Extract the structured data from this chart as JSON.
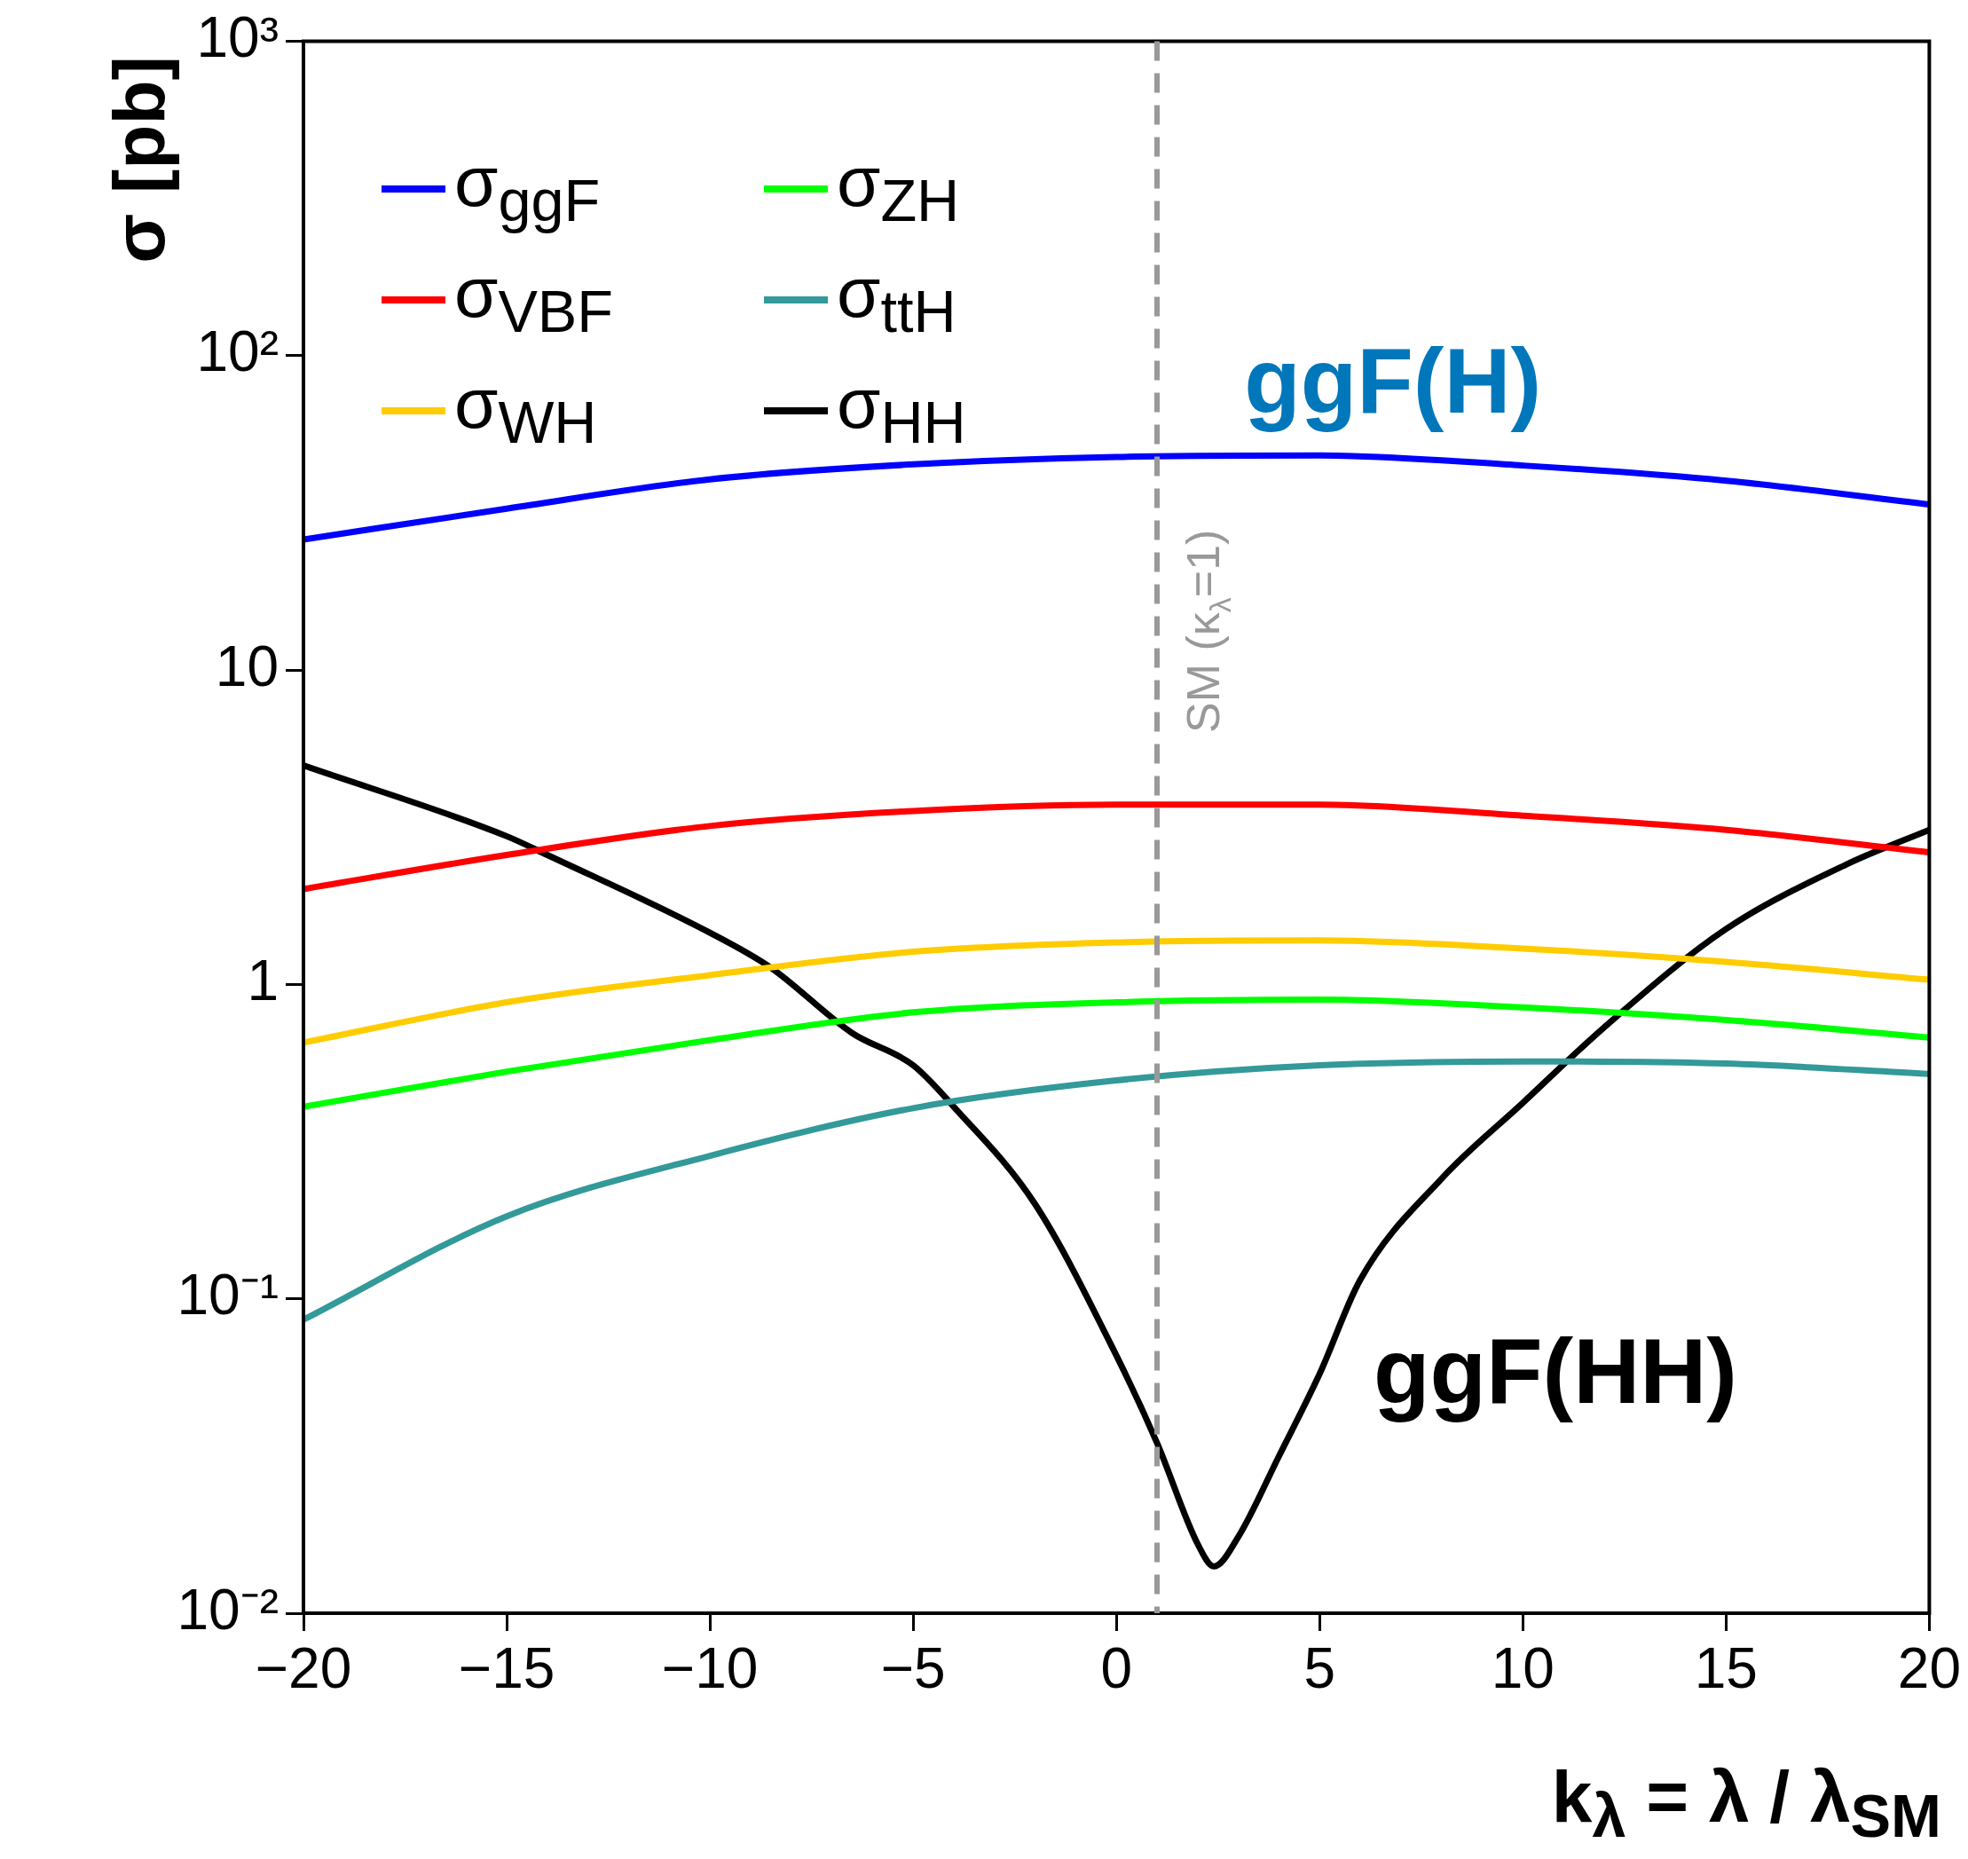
{
  "chart_data": {
    "type": "line",
    "xlabel": "k$_{λ}$ = λ / λ$_{SM}$",
    "ylabel": "σ [pb]",
    "log": "y",
    "legend": "top left",
    "x": [
      -20,
      -15,
      -10,
      -5,
      0,
      5,
      10,
      15,
      20
    ],
    "xlim": [
      -20,
      20
    ],
    "xticks": [
      {
        "value": -20,
        "label": "−20"
      },
      {
        "value": -15,
        "label": "−15"
      },
      {
        "value": -10,
        "label": "−10"
      },
      {
        "value": -5,
        "label": "−5"
      },
      0,
      5,
      10,
      15,
      20
    ],
    "ylim": [
      0.01,
      1000
    ],
    "yticks": [
      {
        "value": 0.01,
        "label": "10⁻²"
      },
      {
        "value": 0.1,
        "label": "10⁻¹"
      },
      1,
      10,
      {
        "value": 100,
        "label": "10²"
      },
      {
        "value": 1000,
        "label": "10³"
      }
    ],
    "series": [
      {
        "name": "σ$_{ggF}$",
        "color": "#0000ff",
        "values": [
          26,
          32.6,
          40.4,
          45.1,
          47.6,
          48.1,
          44.7,
          40,
          33.6
        ]
      },
      {
        "name": "σ$_{VBF}$",
        "color": "#ff0000",
        "values": [
          2.01,
          2.58,
          3.19,
          3.56,
          3.73,
          3.73,
          3.44,
          3.1,
          2.63
        ]
      },
      {
        "name": "σ$_{WH}$",
        "color": "#ffcc00",
        "values": [
          0.653,
          0.877,
          1.07,
          1.27,
          1.36,
          1.38,
          1.3,
          1.18,
          1.035
        ]
      },
      {
        "name": "σ$_{ZH}$",
        "color": "#00ff00",
        "values": [
          0.408,
          0.528,
          0.665,
          0.815,
          0.877,
          0.894,
          0.845,
          0.77,
          0.678
        ]
      },
      {
        "name": "σ$_{ttH}$",
        "color": "#339999",
        "values": [
          0.0858,
          0.183,
          0.285,
          0.404,
          0.495,
          0.553,
          0.569,
          0.56,
          0.519
        ]
      },
      {
        "name": "σ$_{HH}$",
        "color": "#000000",
        "x": [
          -20,
          -15,
          -14,
          -10,
          -8.5,
          -6.5,
          -5,
          -4,
          -2,
          0,
          1,
          2,
          2.4,
          3,
          4,
          5,
          6,
          8,
          10,
          12,
          15,
          18,
          20
        ],
        "values": [
          4.97,
          2.96,
          2.58,
          1.46,
          1.13,
          0.7,
          0.553,
          0.408,
          0.2,
          0.066,
          0.0348,
          0.0166,
          0.0141,
          0.0175,
          0.0316,
          0.0577,
          0.115,
          0.241,
          0.42,
          0.73,
          1.5,
          2.42,
          3.1
        ]
      }
    ],
    "ref_lines": [
      {
        "axis": "x",
        "value": 1,
        "label": "SM (κ$_{λ}$=1)",
        "color": "#999999",
        "line_style": "dashed"
      }
    ],
    "annotations": [
      "ggF(H)",
      "ggF(HH)"
    ]
  }
}
